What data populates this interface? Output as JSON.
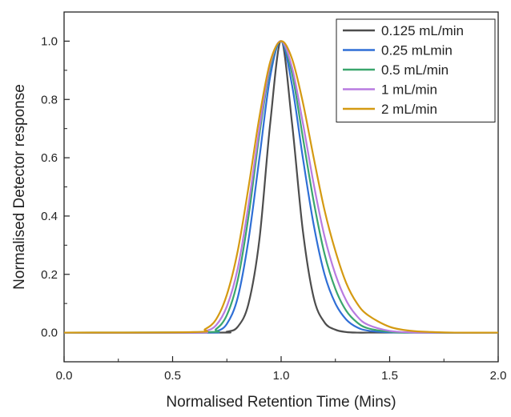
{
  "chart_data": {
    "type": "line",
    "title": "",
    "xlabel": "Normalised Retention Time (Mins)",
    "ylabel": "Normalised Detector response",
    "xlim": [
      0.0,
      2.0
    ],
    "ylim": [
      -0.1,
      1.1
    ],
    "xticks": [
      "0.0",
      "0.5",
      "1.0",
      "1.5",
      "2.0"
    ],
    "yticks": [
      "0.0",
      "0.2",
      "0.4",
      "0.6",
      "0.8",
      "1.0"
    ],
    "grid": false,
    "legend_position": "top-right",
    "series": [
      {
        "name": "0.125 mL/min",
        "color": "#4d4d4d",
        "x": [
          0.0,
          0.7,
          0.75,
          0.8,
          0.85,
          0.9,
          0.95,
          1.0,
          1.05,
          1.1,
          1.15,
          1.2,
          1.25,
          1.3,
          1.35,
          1.4,
          1.5,
          2.0
        ],
        "y": [
          0.0,
          0.0,
          0.003,
          0.02,
          0.1,
          0.32,
          0.72,
          1.0,
          0.72,
          0.35,
          0.12,
          0.035,
          0.01,
          0.002,
          0.0,
          0.0,
          0.0,
          0.0
        ]
      },
      {
        "name": "0.25 mLmin",
        "color": "#2f6fd6",
        "x": [
          0.0,
          0.65,
          0.7,
          0.75,
          0.8,
          0.85,
          0.9,
          0.95,
          1.0,
          1.05,
          1.1,
          1.15,
          1.2,
          1.25,
          1.3,
          1.35,
          1.4,
          1.5,
          1.6,
          2.0
        ],
        "y": [
          0.0,
          0.0,
          0.004,
          0.03,
          0.12,
          0.32,
          0.6,
          0.88,
          1.0,
          0.85,
          0.6,
          0.37,
          0.2,
          0.1,
          0.045,
          0.018,
          0.007,
          0.001,
          0.0,
          0.0
        ]
      },
      {
        "name": "0.5 mL/min",
        "color": "#3aa66d",
        "x": [
          0.0,
          0.65,
          0.7,
          0.75,
          0.8,
          0.85,
          0.9,
          0.95,
          1.0,
          1.05,
          1.1,
          1.15,
          1.2,
          1.25,
          1.3,
          1.35,
          1.4,
          1.5,
          1.6,
          2.0
        ],
        "y": [
          0.0,
          0.002,
          0.012,
          0.06,
          0.18,
          0.4,
          0.68,
          0.91,
          1.0,
          0.89,
          0.67,
          0.45,
          0.27,
          0.15,
          0.075,
          0.035,
          0.015,
          0.003,
          0.0,
          0.0
        ]
      },
      {
        "name": "1 mL/min",
        "color": "#b87be0",
        "x": [
          0.0,
          0.6,
          0.65,
          0.7,
          0.75,
          0.8,
          0.85,
          0.9,
          0.95,
          1.0,
          1.05,
          1.1,
          1.15,
          1.2,
          1.25,
          1.3,
          1.35,
          1.4,
          1.5,
          1.6,
          1.7,
          2.0
        ],
        "y": [
          0.0,
          0.0,
          0.005,
          0.025,
          0.09,
          0.22,
          0.44,
          0.7,
          0.92,
          1.0,
          0.91,
          0.72,
          0.51,
          0.33,
          0.2,
          0.11,
          0.056,
          0.027,
          0.006,
          0.001,
          0.0,
          0.0
        ]
      },
      {
        "name": "2 mL/min",
        "color": "#d49a12",
        "x": [
          0.0,
          0.6,
          0.65,
          0.7,
          0.75,
          0.8,
          0.85,
          0.9,
          0.95,
          1.0,
          1.05,
          1.1,
          1.15,
          1.2,
          1.25,
          1.3,
          1.35,
          1.4,
          1.5,
          1.6,
          1.7,
          1.8,
          2.0
        ],
        "y": [
          0.0,
          0.002,
          0.012,
          0.045,
          0.13,
          0.28,
          0.5,
          0.74,
          0.93,
          1.0,
          0.94,
          0.79,
          0.6,
          0.42,
          0.28,
          0.17,
          0.1,
          0.06,
          0.02,
          0.006,
          0.002,
          0.0,
          0.0
        ]
      }
    ]
  }
}
